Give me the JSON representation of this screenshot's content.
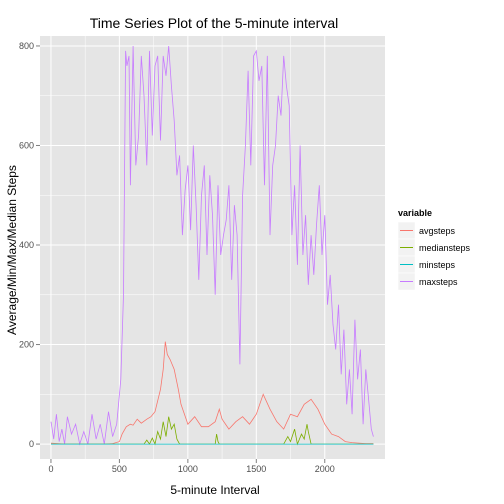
{
  "chart_data": {
    "type": "line",
    "title": "Time Series Plot of the 5-minute interval",
    "xlabel": "5-minute Interval",
    "ylabel": "Average/Min/Max/Median Steps",
    "xlim": [
      -80,
      2440
    ],
    "ylim": [
      -30,
      820
    ],
    "x_ticks": [
      0,
      500,
      1000,
      1500,
      2000
    ],
    "x_tick_labels": [
      "0",
      "500",
      "1000",
      "1500",
      "2000"
    ],
    "y_ticks": [
      0,
      200,
      400,
      600,
      800
    ],
    "y_tick_labels": [
      "0",
      "200",
      "400",
      "600",
      "800"
    ],
    "grid": true,
    "legend": {
      "title": "variable",
      "position": "right"
    },
    "series": [
      {
        "name": "avgsteps",
        "color": "#F8766D",
        "x": [
          0,
          50,
          100,
          150,
          200,
          250,
          300,
          350,
          400,
          450,
          500,
          520,
          550,
          580,
          600,
          630,
          660,
          700,
          730,
          760,
          800,
          820,
          835,
          850,
          870,
          900,
          930,
          950,
          1000,
          1050,
          1100,
          1150,
          1200,
          1230,
          1250,
          1300,
          1350,
          1400,
          1450,
          1500,
          1550,
          1600,
          1650,
          1700,
          1750,
          1800,
          1850,
          1900,
          1950,
          2000,
          2050,
          2100,
          2150,
          2200,
          2250,
          2300,
          2355
        ],
        "y": [
          2,
          1,
          0,
          0,
          0,
          0,
          0,
          0,
          0,
          1,
          5,
          20,
          35,
          40,
          38,
          50,
          42,
          50,
          55,
          65,
          110,
          150,
          206,
          180,
          170,
          150,
          110,
          80,
          40,
          55,
          35,
          35,
          45,
          70,
          50,
          30,
          45,
          55,
          40,
          60,
          100,
          70,
          45,
          30,
          60,
          55,
          80,
          90,
          70,
          40,
          20,
          15,
          5,
          3,
          2,
          1,
          1
        ]
      },
      {
        "name": "mediansteps",
        "color": "#7CAE00",
        "x": [
          0,
          500,
          680,
          700,
          720,
          740,
          760,
          780,
          800,
          820,
          840,
          860,
          880,
          900,
          920,
          940,
          1200,
          1210,
          1220,
          1230,
          1700,
          1730,
          1750,
          1780,
          1800,
          1830,
          1850,
          1870,
          1880,
          1900,
          2355
        ],
        "y": [
          0,
          0,
          0,
          8,
          0,
          12,
          0,
          25,
          10,
          45,
          15,
          55,
          30,
          40,
          10,
          0,
          0,
          20,
          5,
          0,
          0,
          15,
          5,
          30,
          0,
          20,
          10,
          40,
          25,
          0,
          0
        ]
      },
      {
        "name": "minsteps",
        "color": "#00BFC4",
        "x": [
          0,
          2355
        ],
        "y": [
          0,
          0
        ]
      },
      {
        "name": "maxsteps",
        "color": "#C77CFF",
        "x": [
          0,
          20,
          40,
          60,
          80,
          100,
          120,
          150,
          180,
          210,
          240,
          270,
          300,
          330,
          360,
          390,
          420,
          450,
          480,
          510,
          530,
          545,
          555,
          570,
          580,
          600,
          620,
          640,
          660,
          680,
          700,
          720,
          740,
          760,
          780,
          800,
          820,
          840,
          860,
          880,
          900,
          920,
          940,
          960,
          980,
          1000,
          1020,
          1040,
          1060,
          1080,
          1100,
          1120,
          1140,
          1160,
          1180,
          1200,
          1220,
          1240,
          1260,
          1280,
          1300,
          1320,
          1340,
          1360,
          1380,
          1400,
          1420,
          1440,
          1460,
          1480,
          1500,
          1520,
          1540,
          1560,
          1580,
          1600,
          1620,
          1640,
          1660,
          1680,
          1700,
          1720,
          1740,
          1760,
          1780,
          1800,
          1820,
          1840,
          1860,
          1880,
          1900,
          1920,
          1940,
          1960,
          1980,
          2000,
          2020,
          2040,
          2060,
          2080,
          2100,
          2120,
          2140,
          2160,
          2180,
          2200,
          2220,
          2240,
          2260,
          2280,
          2300,
          2320,
          2340,
          2355
        ],
        "y": [
          45,
          10,
          60,
          5,
          30,
          0,
          55,
          20,
          40,
          0,
          25,
          0,
          60,
          10,
          40,
          0,
          65,
          15,
          40,
          130,
          300,
          790,
          760,
          780,
          520,
          800,
          560,
          620,
          780,
          700,
          560,
          790,
          620,
          760,
          780,
          610,
          780,
          740,
          800,
          720,
          650,
          540,
          580,
          420,
          510,
          560,
          430,
          600,
          480,
          330,
          500,
          560,
          380,
          540,
          460,
          300,
          520,
          380,
          420,
          450,
          520,
          330,
          480,
          420,
          160,
          500,
          600,
          750,
          560,
          780,
          790,
          730,
          760,
          520,
          780,
          420,
          560,
          600,
          700,
          660,
          780,
          720,
          680,
          420,
          520,
          360,
          600,
          380,
          460,
          320,
          420,
          340,
          440,
          520,
          380,
          460,
          280,
          340,
          240,
          190,
          280,
          140,
          230,
          80,
          150,
          60,
          250,
          130,
          190,
          40,
          150,
          90,
          30,
          15
        ]
      }
    ]
  }
}
